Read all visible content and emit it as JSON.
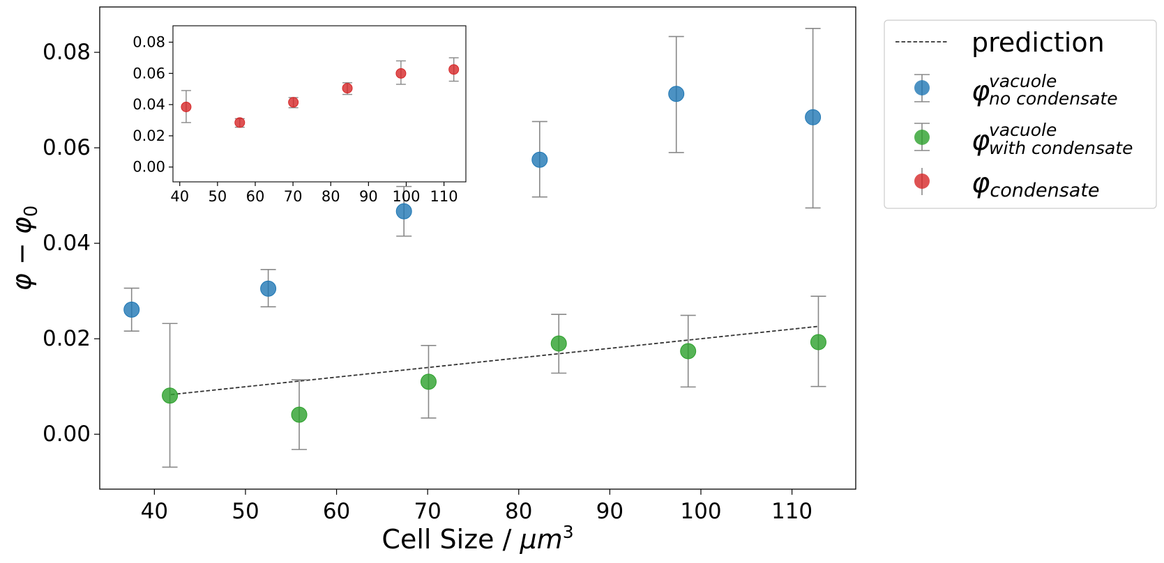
{
  "chart_data": {
    "type": "scatter",
    "xlabel": "Cell Size / μm³",
    "xlabel_parts": {
      "text": "Cell Size / ",
      "unit_base": "μm",
      "unit_exp": "3"
    },
    "ylabel": "φ − φ₀",
    "ylabel_parts": {
      "phi": "φ",
      "minus": " − ",
      "sub": "0"
    },
    "xlim": [
      34,
      117
    ],
    "ylim": [
      -0.0115,
      0.0895
    ],
    "xticks": [
      "40",
      "50",
      "60",
      "70",
      "80",
      "90",
      "100",
      "110"
    ],
    "yticks": [
      "0.00",
      "0.02",
      "0.04",
      "0.06",
      "0.08"
    ],
    "grid": false,
    "legend_position": "outside-right",
    "prediction": {
      "name": "prediction",
      "style": "dashed",
      "color": "#333333",
      "x": [
        41.8,
        112.9
      ],
      "y": [
        0.0083,
        0.0226
      ]
    },
    "series": [
      {
        "name": "φ vacuole / no condensate",
        "label_parts": {
          "phi": "φ",
          "sup": "vacuole",
          "sub": "no condensate"
        },
        "color": "#1f77b4",
        "x": [
          37.5,
          52.5,
          67.4,
          82.3,
          97.3,
          112.3
        ],
        "y": [
          0.0261,
          0.0305,
          0.0467,
          0.0575,
          0.0713,
          0.0664
        ],
        "err_low": [
          0.0216,
          0.0267,
          0.0415,
          0.0497,
          0.059,
          0.0474
        ],
        "err_high": [
          0.0306,
          0.0345,
          0.0519,
          0.0655,
          0.0833,
          0.085
        ]
      },
      {
        "name": "φ vacuole / with condensate",
        "label_parts": {
          "phi": "φ",
          "sup": "vacuole",
          "sub": "with condensate"
        },
        "color": "#2ca02c",
        "x": [
          41.7,
          55.9,
          70.1,
          84.4,
          98.6,
          112.9
        ],
        "y": [
          0.0081,
          0.0041,
          0.011,
          0.019,
          0.0174,
          0.0193
        ],
        "err_low": [
          -0.0069,
          -0.0032,
          0.0034,
          0.0128,
          0.0099,
          0.01
        ],
        "err_high": [
          0.0232,
          0.0114,
          0.0186,
          0.0251,
          0.0249,
          0.0289
        ]
      },
      {
        "name": "φ condensate",
        "label_parts": {
          "phi": "φ",
          "sub": "condensate"
        },
        "color": "#d62728",
        "legend_only": true
      }
    ],
    "inset": {
      "type": "scatter",
      "xlim": [
        38.2,
        115.8
      ],
      "ylim": [
        -0.0095,
        0.0905
      ],
      "xticks": [
        "40",
        "50",
        "60",
        "70",
        "80",
        "90",
        "100",
        "110"
      ],
      "yticks": [
        "0.00",
        "0.02",
        "0.04",
        "0.06",
        "0.08"
      ],
      "series": [
        {
          "name": "φ condensate",
          "color": "#d62728",
          "x": [
            41.7,
            55.9,
            70.1,
            84.4,
            98.6,
            112.6
          ],
          "y": [
            0.0385,
            0.0285,
            0.0415,
            0.0505,
            0.06,
            0.0625
          ],
          "err_low": [
            0.0285,
            0.0255,
            0.038,
            0.0465,
            0.053,
            0.055
          ],
          "err_high": [
            0.049,
            0.031,
            0.0445,
            0.054,
            0.068,
            0.07
          ]
        }
      ]
    }
  }
}
